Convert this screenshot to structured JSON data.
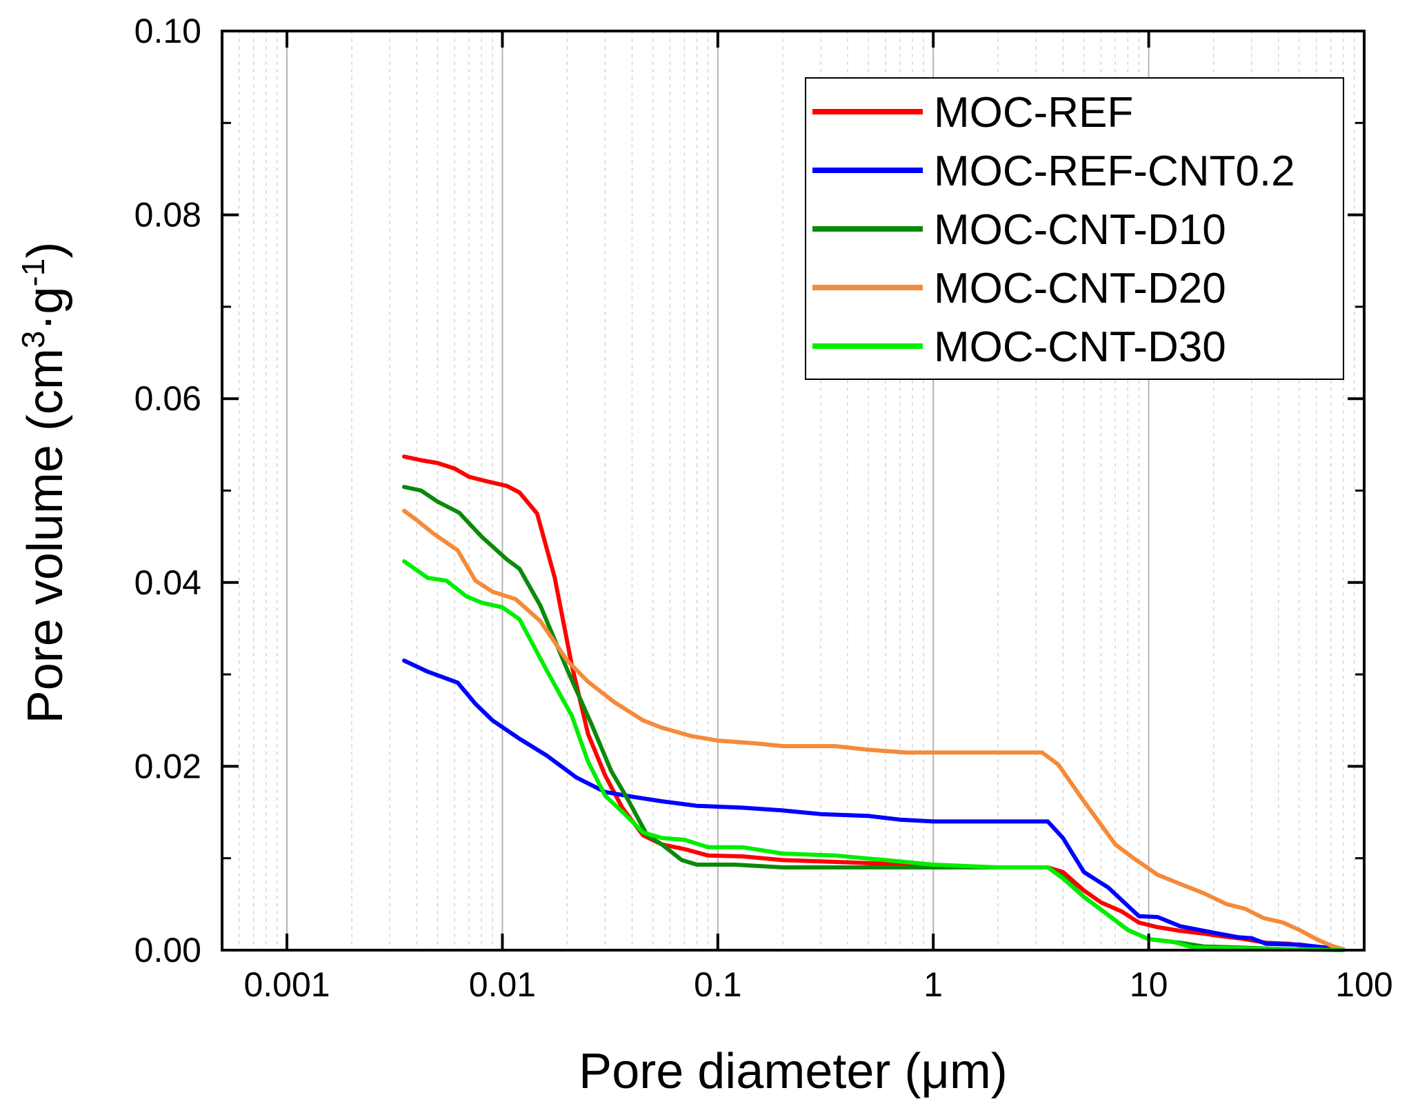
{
  "chart_data": {
    "type": "line",
    "xlabel": "Pore diameter (μm)",
    "ylabel_main": "Pore volume (cm",
    "ylabel_sup1": "3",
    "ylabel_mid": "·g",
    "ylabel_sup2": "-1",
    "ylabel_end": ")",
    "xscale": "log",
    "xlim": [
      0.0005,
      100
    ],
    "ylim": [
      0,
      0.1
    ],
    "xticks": [
      0.001,
      0.01,
      0.1,
      1,
      10,
      100
    ],
    "xtick_labels": [
      "0.001",
      "0.01",
      "0.1",
      "1",
      "10",
      "100"
    ],
    "yticks": [
      0,
      0.02,
      0.04,
      0.06,
      0.08,
      0.1
    ],
    "ytick_labels": [
      "0.00",
      "0.02",
      "0.04",
      "0.06",
      "0.08",
      "0.10"
    ],
    "grid": "vertical log gridlines",
    "legend_position": "top-right",
    "series": [
      {
        "name": "MOC-REF",
        "color": "#ff0000",
        "points": [
          [
            0.0035,
            0.0537
          ],
          [
            0.0042,
            0.0533
          ],
          [
            0.005,
            0.053
          ],
          [
            0.006,
            0.0524
          ],
          [
            0.007,
            0.0515
          ],
          [
            0.0085,
            0.051
          ],
          [
            0.0105,
            0.0505
          ],
          [
            0.012,
            0.0498
          ],
          [
            0.0145,
            0.0475
          ],
          [
            0.0175,
            0.0405
          ],
          [
            0.021,
            0.031
          ],
          [
            0.025,
            0.0235
          ],
          [
            0.03,
            0.019
          ],
          [
            0.036,
            0.0155
          ],
          [
            0.045,
            0.0125
          ],
          [
            0.055,
            0.0115
          ],
          [
            0.07,
            0.011
          ],
          [
            0.09,
            0.0103
          ],
          [
            0.13,
            0.0102
          ],
          [
            0.2,
            0.0098
          ],
          [
            0.35,
            0.0096
          ],
          [
            0.6,
            0.0094
          ],
          [
            1,
            0.0091
          ],
          [
            2,
            0.009
          ],
          [
            3.4,
            0.009
          ],
          [
            4,
            0.0085
          ],
          [
            5,
            0.0065
          ],
          [
            6,
            0.0052
          ],
          [
            7.5,
            0.0042
          ],
          [
            9,
            0.003
          ],
          [
            11,
            0.0025
          ],
          [
            14,
            0.0021
          ],
          [
            18,
            0.0018
          ],
          [
            22,
            0.0015
          ],
          [
            28,
            0.0012
          ],
          [
            35,
            0.0008
          ],
          [
            45,
            0.0007
          ],
          [
            55,
            0.0004
          ],
          [
            70,
            0.0002
          ],
          [
            80,
            0.0001
          ]
        ]
      },
      {
        "name": "MOC-REF-CNT0.2",
        "color": "#0000ff",
        "points": [
          [
            0.0035,
            0.0315
          ],
          [
            0.0045,
            0.0303
          ],
          [
            0.0062,
            0.0291
          ],
          [
            0.0075,
            0.0268
          ],
          [
            0.009,
            0.025
          ],
          [
            0.012,
            0.023
          ],
          [
            0.016,
            0.0212
          ],
          [
            0.022,
            0.0188
          ],
          [
            0.03,
            0.0172
          ],
          [
            0.04,
            0.0167
          ],
          [
            0.055,
            0.0162
          ],
          [
            0.08,
            0.0157
          ],
          [
            0.13,
            0.0155
          ],
          [
            0.2,
            0.0152
          ],
          [
            0.3,
            0.0148
          ],
          [
            0.5,
            0.0146
          ],
          [
            0.7,
            0.0142
          ],
          [
            1,
            0.014
          ],
          [
            2,
            0.014
          ],
          [
            3.4,
            0.014
          ],
          [
            4,
            0.0122
          ],
          [
            5,
            0.0085
          ],
          [
            6.5,
            0.0068
          ],
          [
            9,
            0.0037
          ],
          [
            11,
            0.0036
          ],
          [
            14,
            0.0026
          ],
          [
            20,
            0.0019
          ],
          [
            26,
            0.0014
          ],
          [
            30,
            0.0013
          ],
          [
            35,
            0.0007
          ],
          [
            50,
            0.0006
          ],
          [
            65,
            0.0003
          ],
          [
            80,
            0.0001
          ]
        ]
      },
      {
        "name": "MOC-CNT-D10",
        "color": "#0a8a0a",
        "points": [
          [
            0.0035,
            0.0504
          ],
          [
            0.0042,
            0.05
          ],
          [
            0.005,
            0.0488
          ],
          [
            0.0063,
            0.0476
          ],
          [
            0.008,
            0.045
          ],
          [
            0.0105,
            0.0425
          ],
          [
            0.012,
            0.0415
          ],
          [
            0.015,
            0.0375
          ],
          [
            0.02,
            0.0305
          ],
          [
            0.026,
            0.0245
          ],
          [
            0.032,
            0.0195
          ],
          [
            0.038,
            0.0165
          ],
          [
            0.047,
            0.0125
          ],
          [
            0.055,
            0.0115
          ],
          [
            0.068,
            0.0098
          ],
          [
            0.08,
            0.0093
          ],
          [
            0.12,
            0.0093
          ],
          [
            0.2,
            0.009
          ],
          [
            0.4,
            0.009
          ],
          [
            1,
            0.009
          ],
          [
            2,
            0.009
          ],
          [
            3.4,
            0.009
          ],
          [
            4,
            0.008
          ],
          [
            5,
            0.0058
          ],
          [
            6.5,
            0.0038
          ],
          [
            8,
            0.0022
          ],
          [
            10,
            0.0012
          ],
          [
            14,
            0.0008
          ],
          [
            18,
            0.0004
          ],
          [
            25,
            0.0003
          ],
          [
            45,
            0.0001
          ],
          [
            80,
            0
          ]
        ]
      },
      {
        "name": "MOC-CNT-D20",
        "color": "#f58a3a",
        "points": [
          [
            0.0035,
            0.0478
          ],
          [
            0.004,
            0.0468
          ],
          [
            0.0048,
            0.0453
          ],
          [
            0.0062,
            0.0435
          ],
          [
            0.0075,
            0.0402
          ],
          [
            0.009,
            0.039
          ],
          [
            0.0115,
            0.0382
          ],
          [
            0.015,
            0.0358
          ],
          [
            0.02,
            0.0315
          ],
          [
            0.025,
            0.0292
          ],
          [
            0.033,
            0.027
          ],
          [
            0.045,
            0.025
          ],
          [
            0.055,
            0.0242
          ],
          [
            0.075,
            0.0233
          ],
          [
            0.1,
            0.0228
          ],
          [
            0.15,
            0.0225
          ],
          [
            0.2,
            0.0222
          ],
          [
            0.35,
            0.0222
          ],
          [
            0.5,
            0.0218
          ],
          [
            0.75,
            0.0215
          ],
          [
            1,
            0.0215
          ],
          [
            2,
            0.0215
          ],
          [
            3.2,
            0.0215
          ],
          [
            3.8,
            0.0202
          ],
          [
            5,
            0.0162
          ],
          [
            7,
            0.0115
          ],
          [
            8.5,
            0.01
          ],
          [
            11,
            0.0082
          ],
          [
            14,
            0.0072
          ],
          [
            18,
            0.0062
          ],
          [
            23,
            0.005
          ],
          [
            28,
            0.0045
          ],
          [
            34,
            0.0035
          ],
          [
            42,
            0.003
          ],
          [
            50,
            0.0022
          ],
          [
            60,
            0.0012
          ],
          [
            70,
            0.0005
          ],
          [
            80,
            0.0001
          ]
        ]
      },
      {
        "name": "MOC-CNT-D30",
        "color": "#00ee00",
        "points": [
          [
            0.0035,
            0.0423
          ],
          [
            0.0045,
            0.0405
          ],
          [
            0.0055,
            0.0402
          ],
          [
            0.0068,
            0.0385
          ],
          [
            0.008,
            0.0378
          ],
          [
            0.01,
            0.0373
          ],
          [
            0.012,
            0.036
          ],
          [
            0.016,
            0.0305
          ],
          [
            0.021,
            0.0255
          ],
          [
            0.025,
            0.0205
          ],
          [
            0.03,
            0.0168
          ],
          [
            0.037,
            0.0148
          ],
          [
            0.045,
            0.0128
          ],
          [
            0.055,
            0.0122
          ],
          [
            0.07,
            0.012
          ],
          [
            0.09,
            0.0112
          ],
          [
            0.13,
            0.0112
          ],
          [
            0.2,
            0.0105
          ],
          [
            0.35,
            0.0103
          ],
          [
            0.6,
            0.0098
          ],
          [
            1,
            0.0093
          ],
          [
            2,
            0.009
          ],
          [
            3.4,
            0.009
          ],
          [
            4,
            0.0078
          ],
          [
            5,
            0.0058
          ],
          [
            6.5,
            0.0038
          ],
          [
            8,
            0.0022
          ],
          [
            10,
            0.0012
          ],
          [
            13,
            0.0009
          ],
          [
            16,
            0.0003
          ],
          [
            25,
            0.0002
          ],
          [
            80,
            0
          ]
        ]
      }
    ]
  }
}
